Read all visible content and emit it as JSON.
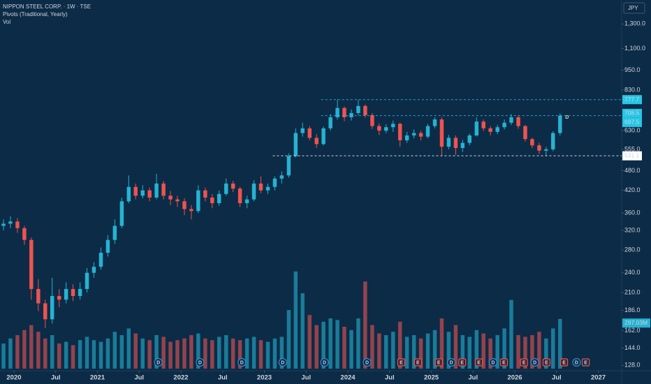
{
  "chart_data": {
    "type": "candlestick",
    "title": "NIPPON STEEL CORP. · 1W · TSE",
    "indicators": [
      "Pivots (Traditional, Yearly)",
      "Vol"
    ],
    "currency": "JPY",
    "log_scale": true,
    "grid": false,
    "up_color": "#26b3d1",
    "down_color": "#ef5350",
    "x": [
      2019.875,
      2019.958,
      2020.042,
      2020.125,
      2020.208,
      2020.292,
      2020.375,
      2020.458,
      2020.542,
      2020.625,
      2020.708,
      2020.792,
      2020.875,
      2020.958,
      2021.042,
      2021.125,
      2021.208,
      2021.292,
      2021.375,
      2021.458,
      2021.542,
      2021.625,
      2021.708,
      2021.792,
      2021.875,
      2021.958,
      2022.042,
      2022.125,
      2022.208,
      2022.292,
      2022.375,
      2022.458,
      2022.542,
      2022.625,
      2022.708,
      2022.792,
      2022.875,
      2022.958,
      2023.042,
      2023.125,
      2023.208,
      2023.292,
      2023.375,
      2023.458,
      2023.542,
      2023.625,
      2023.708,
      2023.792,
      2023.875,
      2023.958,
      2024.042,
      2024.125,
      2024.208,
      2024.292,
      2024.375,
      2024.458,
      2024.542,
      2024.625,
      2024.708,
      2024.792,
      2024.875,
      2024.958,
      2025.042,
      2025.125,
      2025.208,
      2025.292,
      2025.375,
      2025.458,
      2025.542,
      2025.625,
      2025.708,
      2025.792,
      2025.875,
      2025.958,
      2026.042,
      2026.125,
      2026.208,
      2026.292,
      2026.375,
      2026.458,
      2026.542
    ],
    "open": [
      330,
      335,
      340,
      325,
      300,
      215,
      195,
      175,
      205,
      200,
      215,
      205,
      215,
      240,
      250,
      275,
      300,
      330,
      390,
      430,
      405,
      420,
      400,
      440,
      405,
      395,
      390,
      370,
      365,
      420,
      400,
      385,
      410,
      440,
      425,
      385,
      395,
      440,
      420,
      430,
      455,
      465,
      530,
      620,
      640,
      600,
      575,
      640,
      690,
      735,
      690,
      710,
      745,
      700,
      650,
      630,
      645,
      660,
      590,
      610,
      620,
      605,
      650,
      680,
      565,
      600,
      560,
      580,
      610,
      670,
      640,
      625,
      645,
      665,
      690,
      650,
      595,
      570,
      550,
      555,
      620
    ],
    "high": [
      345,
      352,
      348,
      330,
      305,
      230,
      200,
      232,
      215,
      225,
      222,
      225,
      248,
      258,
      285,
      310,
      345,
      400,
      465,
      440,
      435,
      428,
      470,
      448,
      418,
      405,
      398,
      380,
      435,
      428,
      410,
      420,
      455,
      448,
      430,
      405,
      450,
      462,
      440,
      462,
      478,
      540,
      640,
      665,
      650,
      615,
      648,
      705,
      778,
      742,
      728,
      778,
      752,
      710,
      662,
      658,
      675,
      665,
      625,
      635,
      630,
      660,
      690,
      690,
      612,
      610,
      592,
      618,
      690,
      680,
      650,
      655,
      680,
      705,
      698,
      655,
      600,
      580,
      565,
      628,
      708.5
    ],
    "low": [
      320,
      325,
      315,
      290,
      200,
      185,
      165,
      170,
      190,
      195,
      198,
      200,
      210,
      232,
      245,
      268,
      292,
      325,
      385,
      395,
      398,
      390,
      395,
      395,
      380,
      375,
      355,
      345,
      360,
      390,
      372,
      378,
      405,
      415,
      375,
      372,
      390,
      412,
      410,
      420,
      440,
      458,
      525,
      605,
      590,
      560,
      570,
      630,
      680,
      672,
      675,
      700,
      688,
      638,
      612,
      620,
      625,
      565,
      580,
      598,
      590,
      598,
      640,
      531,
      555,
      535,
      545,
      570,
      605,
      628,
      610,
      615,
      635,
      655,
      638,
      585,
      560,
      538,
      531,
      548,
      610
    ],
    "close": [
      335,
      340,
      325,
      300,
      215,
      195,
      175,
      205,
      200,
      215,
      205,
      215,
      240,
      250,
      275,
      300,
      330,
      390,
      430,
      405,
      420,
      400,
      440,
      405,
      395,
      390,
      370,
      365,
      420,
      400,
      385,
      410,
      440,
      425,
      385,
      395,
      440,
      420,
      430,
      455,
      465,
      530,
      620,
      640,
      600,
      575,
      640,
      690,
      735,
      690,
      710,
      745,
      700,
      650,
      630,
      645,
      660,
      590,
      610,
      620,
      605,
      650,
      680,
      565,
      600,
      560,
      580,
      610,
      670,
      640,
      625,
      645,
      665,
      690,
      650,
      595,
      570,
      550,
      555,
      620,
      697.5
    ],
    "volume": {
      "values": [
        150,
        180,
        200,
        230,
        260,
        220,
        180,
        200,
        150,
        160,
        140,
        170,
        190,
        170,
        160,
        180,
        220,
        200,
        240,
        210,
        180,
        170,
        200,
        190,
        160,
        170,
        180,
        200,
        210,
        180,
        170,
        190,
        200,
        180,
        170,
        180,
        190,
        170,
        160,
        180,
        190,
        350,
        580,
        450,
        320,
        260,
        280,
        300,
        290,
        250,
        230,
        300,
        520,
        260,
        210,
        200,
        220,
        280,
        190,
        200,
        180,
        210,
        230,
        300,
        220,
        260,
        200,
        190,
        230,
        210,
        180,
        200,
        240,
        410,
        200,
        190,
        200,
        220,
        180,
        240,
        297.03
      ],
      "last_value_label": "297.03M"
    },
    "ylim": [
      124,
      1530
    ],
    "yticks": [
      {
        "value": 1300,
        "label": "1,300.0"
      },
      {
        "value": 1100,
        "label": "1,100.0"
      },
      {
        "value": 950,
        "label": "950.0"
      },
      {
        "value": 830,
        "label": "830.0"
      },
      {
        "value": 630,
        "label": "630.0"
      },
      {
        "value": 555,
        "label": "555.0"
      },
      {
        "value": 480,
        "label": "480.0"
      },
      {
        "value": 420,
        "label": "420.0"
      },
      {
        "value": 360,
        "label": "360.0"
      },
      {
        "value": 320,
        "label": "320.0"
      },
      {
        "value": 280,
        "label": "280.0"
      },
      {
        "value": 240,
        "label": "240.0"
      },
      {
        "value": 210,
        "label": "210.0"
      },
      {
        "value": 186,
        "label": "186.0"
      },
      {
        "value": 162,
        "label": "162.0"
      },
      {
        "value": 144,
        "label": "144.0"
      },
      {
        "value": 128,
        "label": "128.0"
      }
    ],
    "xlim": [
      2019.833,
      2027.28
    ],
    "xticks": [
      2020,
      {
        "value": 2020.5,
        "label": "Jul"
      },
      2021,
      {
        "value": 2021.5,
        "label": "Jul"
      },
      2022,
      {
        "value": 2022.5,
        "label": "Jul"
      },
      2023,
      {
        "value": 2023.5,
        "label": "Jul"
      },
      2024,
      {
        "value": 2024.5,
        "label": "Jul"
      },
      2025,
      {
        "value": 2025.5,
        "label": "Jul"
      },
      2026,
      {
        "value": 2026.5,
        "label": "Jul"
      },
      2027
    ],
    "levels": [
      {
        "value": 777.7,
        "from": 2023.68,
        "line": true,
        "color": "#26c6e6"
      },
      {
        "value": 708.5,
        "from": 2023.68,
        "line": false,
        "color": "#26c6e6"
      },
      {
        "value": 697.5,
        "from": 2023.68,
        "line": true,
        "color": "#26c6e6"
      },
      {
        "value": 531.1,
        "from": 2023.1,
        "line": true,
        "color": "#ffffff"
      }
    ],
    "price_marker": "D",
    "events": [
      {
        "x": 2021.73,
        "label": "D"
      },
      {
        "x": 2022.23,
        "label": "D"
      },
      {
        "x": 2022.73,
        "label": "D"
      },
      {
        "x": 2023.22,
        "label": "D"
      },
      {
        "x": 2023.72,
        "label": "D"
      },
      {
        "x": 2024.23,
        "label": "D"
      },
      {
        "x": 2024.64,
        "label": "E"
      },
      {
        "x": 2024.84,
        "label": "E"
      },
      {
        "x": 2025.09,
        "label": "E"
      },
      {
        "x": 2025.24,
        "label": "D"
      },
      {
        "x": 2025.37,
        "label": "E"
      },
      {
        "x": 2025.57,
        "label": "E"
      },
      {
        "x": 2025.74,
        "label": "D"
      },
      {
        "x": 2025.87,
        "label": "E"
      },
      {
        "x": 2026.11,
        "label": "E"
      },
      {
        "x": 2026.24,
        "label": "D"
      },
      {
        "x": 2026.38,
        "label": "E"
      },
      {
        "x": 2026.59,
        "label": "E"
      },
      {
        "x": 2026.74,
        "label": "D",
        "future": true
      },
      {
        "x": 2026.85,
        "label": "E",
        "future": true
      }
    ]
  }
}
